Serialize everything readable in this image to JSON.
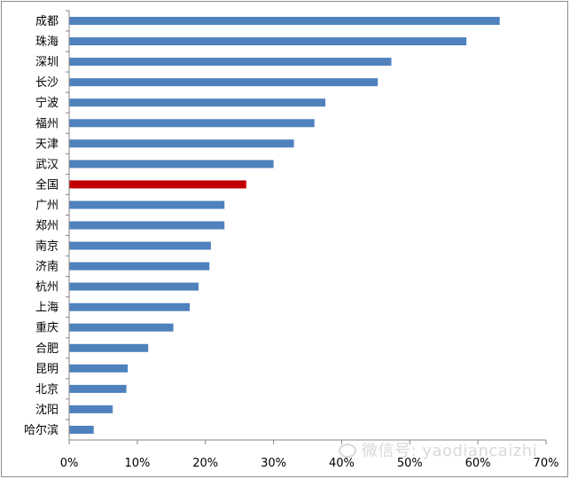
{
  "chart_data": {
    "type": "bar",
    "orientation": "horizontal",
    "categories": [
      "成都",
      "珠海",
      "深圳",
      "长沙",
      "宁波",
      "福州",
      "天津",
      "武汉",
      "全国",
      "广州",
      "郑州",
      "南京",
      "济南",
      "杭州",
      "上海",
      "重庆",
      "合肥",
      "昆明",
      "北京",
      "沈阳",
      "哈尔滨"
    ],
    "values": [
      63.2,
      58.3,
      47.3,
      45.3,
      37.6,
      36.0,
      33.0,
      30.0,
      26.0,
      22.8,
      22.8,
      20.8,
      20.6,
      19.0,
      17.7,
      15.3,
      11.6,
      8.6,
      8.4,
      6.4,
      3.6
    ],
    "xlim": [
      0,
      70
    ],
    "xticks": [
      "0%",
      "10%",
      "20%",
      "30%",
      "40%",
      "50%",
      "60%",
      "70%"
    ],
    "colors": {
      "default": "#4F81BD",
      "highlight": "#C00000"
    },
    "highlight_category": "全国",
    "grid": false,
    "legend": "none"
  },
  "watermark": {
    "text": "微信号: yaodiancaizhi",
    "icon": "wechat-icon"
  }
}
